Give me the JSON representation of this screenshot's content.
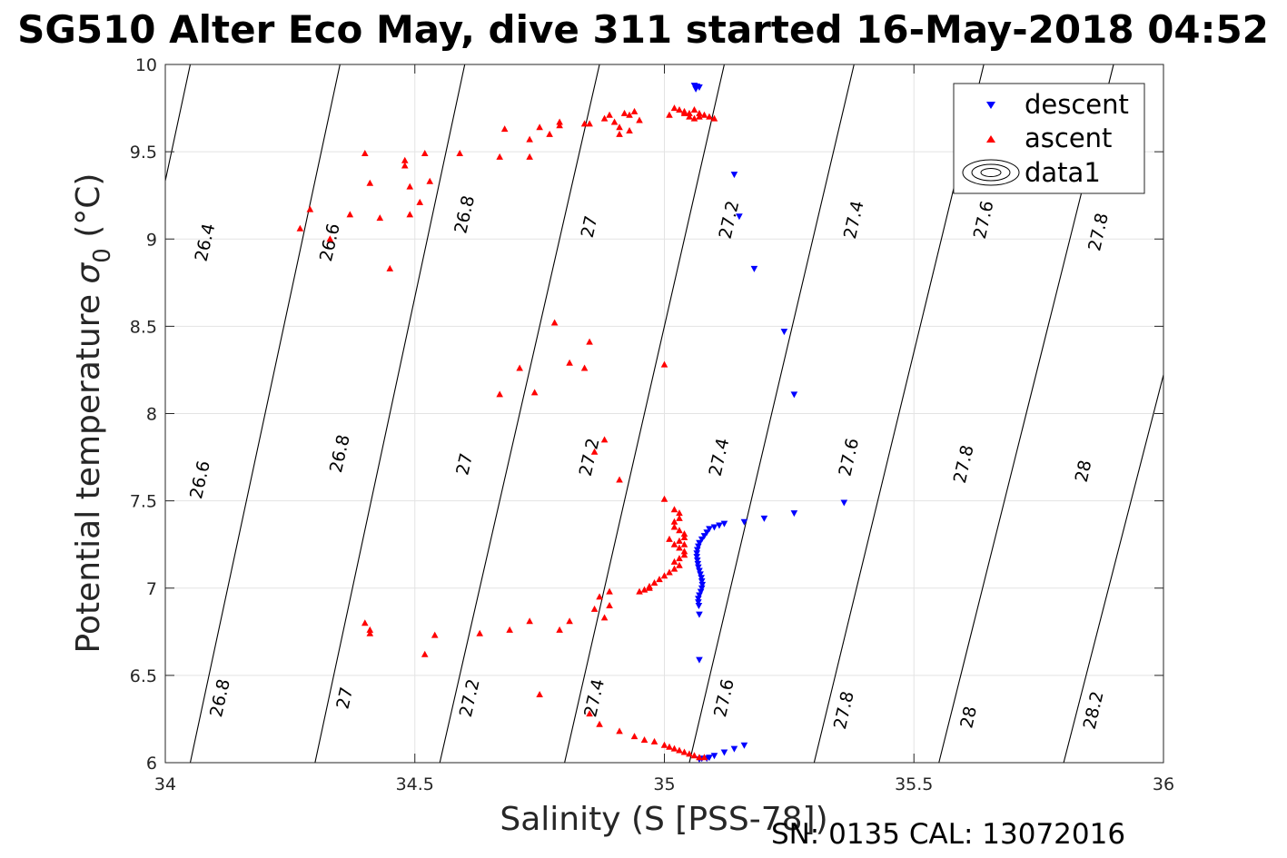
{
  "title": "SG510 Alter Eco May, dive 311 started 16-May-2018 04:52",
  "footer": "SN: 0135  CAL: 13072016",
  "chart_data": {
    "type": "scatter",
    "xlabel": "Salinity (S [PSS-78])",
    "ylabel": "Potential temperature",
    "ylabel_symbol": "σ",
    "ylabel_sub": "0",
    "ylabel_unit": "(°C)",
    "xlim": [
      34,
      36
    ],
    "ylim": [
      6,
      10
    ],
    "xticks": [
      34,
      34.5,
      35,
      35.5,
      36
    ],
    "xtick_labels": [
      "34",
      "34.5",
      "35",
      "35.5",
      "36"
    ],
    "yticks": [
      6,
      6.5,
      7,
      7.5,
      8,
      8.5,
      9,
      9.5,
      10
    ],
    "ytick_labels": [
      "6",
      "6.5",
      "7",
      "7.5",
      "8",
      "8.5",
      "9",
      "9.5",
      "10"
    ],
    "grid": true,
    "legend_position": "top-right",
    "legend": [
      "descent",
      "ascent",
      "data1"
    ],
    "series": [
      {
        "name": "descent",
        "marker": "triangle-down",
        "color": "#0000ff",
        "points": [
          [
            35.06,
            9.88
          ],
          [
            35.065,
            9.875
          ],
          [
            35.07,
            9.87
          ],
          [
            35.063,
            9.86
          ],
          [
            35.14,
            9.37
          ],
          [
            35.15,
            9.13
          ],
          [
            35.18,
            8.83
          ],
          [
            35.24,
            8.47
          ],
          [
            35.26,
            8.11
          ],
          [
            35.36,
            7.49
          ],
          [
            35.26,
            7.43
          ],
          [
            35.2,
            7.4
          ],
          [
            35.16,
            7.38
          ],
          [
            35.12,
            7.37
          ],
          [
            35.11,
            7.36
          ],
          [
            35.1,
            7.35
          ],
          [
            35.09,
            7.34
          ],
          [
            35.085,
            7.32
          ],
          [
            35.08,
            7.3
          ],
          [
            35.075,
            7.28
          ],
          [
            35.07,
            7.26
          ],
          [
            35.068,
            7.24
          ],
          [
            35.066,
            7.22
          ],
          [
            35.065,
            7.2
          ],
          [
            35.065,
            7.18
          ],
          [
            35.066,
            7.16
          ],
          [
            35.067,
            7.14
          ],
          [
            35.068,
            7.12
          ],
          [
            35.07,
            7.1
          ],
          [
            35.072,
            7.08
          ],
          [
            35.074,
            7.06
          ],
          [
            35.075,
            7.04
          ],
          [
            35.076,
            7.02
          ],
          [
            35.075,
            7.0
          ],
          [
            35.073,
            6.98
          ],
          [
            35.07,
            6.96
          ],
          [
            35.068,
            6.94
          ],
          [
            35.068,
            6.92
          ],
          [
            35.069,
            6.9
          ],
          [
            35.07,
            6.85
          ],
          [
            35.07,
            6.59
          ],
          [
            35.16,
            6.1
          ],
          [
            35.14,
            6.08
          ],
          [
            35.12,
            6.06
          ],
          [
            35.1,
            6.04
          ],
          [
            35.09,
            6.03
          ],
          [
            35.085,
            6.025
          ],
          [
            35.075,
            6.025
          ],
          [
            35.07,
            6.02
          ]
        ]
      },
      {
        "name": "ascent",
        "marker": "triangle-up",
        "color": "#ff0000",
        "points": [
          [
            34.27,
            9.06
          ],
          [
            34.29,
            9.17
          ],
          [
            34.33,
            9.0
          ],
          [
            34.37,
            9.14
          ],
          [
            34.4,
            9.49
          ],
          [
            34.41,
            9.32
          ],
          [
            34.43,
            9.12
          ],
          [
            34.45,
            8.83
          ],
          [
            34.48,
            9.42
          ],
          [
            34.48,
            9.45
          ],
          [
            34.49,
            9.3
          ],
          [
            34.49,
            9.14
          ],
          [
            34.51,
            9.21
          ],
          [
            34.52,
            9.49
          ],
          [
            34.53,
            9.33
          ],
          [
            34.59,
            9.49
          ],
          [
            34.67,
            9.47
          ],
          [
            34.68,
            9.63
          ],
          [
            34.73,
            9.47
          ],
          [
            34.73,
            9.57
          ],
          [
            34.75,
            9.64
          ],
          [
            34.77,
            9.6
          ],
          [
            34.79,
            9.65
          ],
          [
            34.79,
            9.67
          ],
          [
            34.84,
            9.66
          ],
          [
            34.85,
            9.66
          ],
          [
            34.88,
            9.69
          ],
          [
            34.89,
            9.71
          ],
          [
            34.9,
            9.67
          ],
          [
            34.91,
            9.6
          ],
          [
            34.91,
            9.64
          ],
          [
            34.92,
            9.72
          ],
          [
            34.93,
            9.62
          ],
          [
            34.93,
            9.71
          ],
          [
            34.94,
            9.73
          ],
          [
            34.95,
            9.68
          ],
          [
            35.01,
            9.71
          ],
          [
            35.02,
            9.75
          ],
          [
            35.03,
            9.74
          ],
          [
            35.04,
            9.73
          ],
          [
            35.05,
            9.72
          ],
          [
            35.05,
            9.7
          ],
          [
            35.06,
            9.74
          ],
          [
            35.07,
            9.72
          ],
          [
            35.08,
            9.71
          ],
          [
            35.09,
            9.7
          ],
          [
            35.1,
            9.69
          ],
          [
            35.06,
            9.69
          ],
          [
            35.04,
            9.72
          ],
          [
            35.07,
            9.7
          ],
          [
            34.78,
            8.52
          ],
          [
            34.85,
            8.41
          ],
          [
            34.71,
            8.26
          ],
          [
            34.81,
            8.29
          ],
          [
            34.84,
            8.26
          ],
          [
            35.0,
            8.28
          ],
          [
            34.67,
            8.11
          ],
          [
            34.74,
            8.12
          ],
          [
            34.88,
            7.85
          ],
          [
            34.86,
            7.78
          ],
          [
            34.91,
            7.62
          ],
          [
            35.0,
            7.51
          ],
          [
            35.02,
            7.45
          ],
          [
            35.03,
            7.43
          ],
          [
            35.03,
            7.4
          ],
          [
            35.02,
            7.38
          ],
          [
            35.02,
            7.35
          ],
          [
            35.03,
            7.33
          ],
          [
            35.04,
            7.31
          ],
          [
            35.04,
            7.29
          ],
          [
            35.03,
            7.27
          ],
          [
            35.02,
            7.25
          ],
          [
            35.03,
            7.23
          ],
          [
            35.04,
            7.21
          ],
          [
            35.04,
            7.19
          ],
          [
            35.03,
            7.17
          ],
          [
            35.02,
            7.15
          ],
          [
            35.03,
            7.13
          ],
          [
            35.02,
            7.11
          ],
          [
            35.01,
            7.09
          ],
          [
            35.0,
            7.07
          ],
          [
            34.99,
            7.05
          ],
          [
            34.98,
            7.03
          ],
          [
            34.97,
            7.01
          ],
          [
            34.96,
            6.99
          ],
          [
            34.95,
            6.98
          ],
          [
            35.04,
            7.25
          ],
          [
            35.01,
            7.28
          ],
          [
            34.97,
            7.0
          ],
          [
            34.89,
            6.98
          ],
          [
            34.87,
            6.95
          ],
          [
            34.89,
            6.9
          ],
          [
            34.86,
            6.88
          ],
          [
            34.88,
            6.83
          ],
          [
            34.73,
            6.81
          ],
          [
            34.69,
            6.76
          ],
          [
            34.79,
            6.76
          ],
          [
            34.81,
            6.81
          ],
          [
            34.75,
            6.39
          ],
          [
            34.4,
            6.8
          ],
          [
            34.41,
            6.76
          ],
          [
            34.41,
            6.74
          ],
          [
            34.52,
            6.62
          ],
          [
            34.54,
            6.73
          ],
          [
            34.63,
            6.74
          ],
          [
            34.85,
            6.28
          ],
          [
            34.87,
            6.22
          ],
          [
            34.91,
            6.18
          ],
          [
            34.94,
            6.15
          ],
          [
            34.96,
            6.13
          ],
          [
            34.98,
            6.12
          ],
          [
            35.0,
            6.1
          ],
          [
            35.01,
            6.09
          ],
          [
            35.02,
            6.08
          ],
          [
            35.03,
            6.07
          ],
          [
            35.04,
            6.06
          ],
          [
            35.05,
            6.05
          ],
          [
            35.06,
            6.04
          ],
          [
            35.07,
            6.03
          ],
          [
            35.08,
            6.03
          ]
        ]
      }
    ],
    "isopycnals": [
      {
        "label": "26.4",
        "x6": 33.75,
        "x10": 34.05
      },
      {
        "label": "26.6",
        "x6": 34.05,
        "x10": 34.35
      },
      {
        "label": "26.8",
        "x6": 34.3,
        "x10": 34.6
      },
      {
        "label": "27",
        "x6": 34.55,
        "x10": 34.87
      },
      {
        "label": "27.2",
        "x6": 34.8,
        "x10": 35.12
      },
      {
        "label": "27.4",
        "x6": 35.05,
        "x10": 35.38
      },
      {
        "label": "27.6",
        "x6": 35.3,
        "x10": 35.64
      },
      {
        "label": "27.8",
        "x6": 35.55,
        "x10": 35.9
      },
      {
        "label": "28",
        "x6": 35.8,
        "x10": 36.16
      },
      {
        "label": "28.2",
        "x6": 36.05,
        "x10": 36.42
      }
    ],
    "contour_labels": [
      {
        "text": "26.4",
        "x": 34.08,
        "y": 8.98
      },
      {
        "text": "26.6",
        "x": 34.33,
        "y": 8.98
      },
      {
        "text": "26.8",
        "x": 34.6,
        "y": 9.14
      },
      {
        "text": "27",
        "x": 34.85,
        "y": 9.07
      },
      {
        "text": "27.2",
        "x": 35.13,
        "y": 9.11
      },
      {
        "text": "27.4",
        "x": 35.38,
        "y": 9.11
      },
      {
        "text": "27.6",
        "x": 35.64,
        "y": 9.11
      },
      {
        "text": "27.8",
        "x": 35.87,
        "y": 9.04
      },
      {
        "text": "26.6",
        "x": 34.07,
        "y": 7.62
      },
      {
        "text": "26.8",
        "x": 34.35,
        "y": 7.77
      },
      {
        "text": "27",
        "x": 34.6,
        "y": 7.71
      },
      {
        "text": "27.2",
        "x": 34.85,
        "y": 7.75
      },
      {
        "text": "27.4",
        "x": 35.11,
        "y": 7.75
      },
      {
        "text": "27.6",
        "x": 35.37,
        "y": 7.75
      },
      {
        "text": "27.8",
        "x": 35.6,
        "y": 7.71
      },
      {
        "text": "28",
        "x": 35.84,
        "y": 7.67
      },
      {
        "text": "26.8",
        "x": 34.11,
        "y": 6.37
      },
      {
        "text": "27",
        "x": 34.36,
        "y": 6.37
      },
      {
        "text": "27.2",
        "x": 34.61,
        "y": 6.37
      },
      {
        "text": "27.4",
        "x": 34.86,
        "y": 6.37
      },
      {
        "text": "27.6",
        "x": 35.12,
        "y": 6.37
      },
      {
        "text": "27.8",
        "x": 35.36,
        "y": 6.3
      },
      {
        "text": "28",
        "x": 35.61,
        "y": 6.26
      },
      {
        "text": "28.2",
        "x": 35.86,
        "y": 6.3
      }
    ]
  }
}
